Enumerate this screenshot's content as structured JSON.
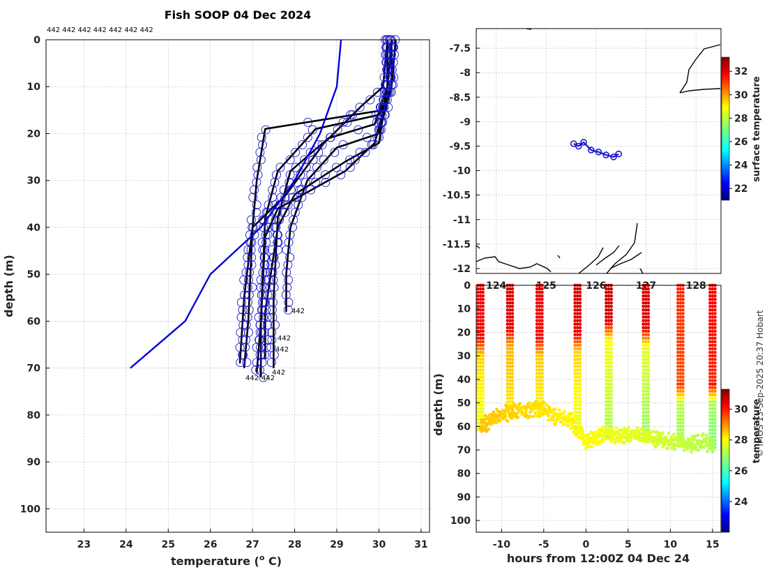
{
  "title": "Fish SOOP 04 Dec 2024",
  "copyright": "© IMOS 13-Sep-2025 20:37 Hobart",
  "colors": {
    "profile": "#000000",
    "climatology": "#0000dd",
    "markers": "#1515cc",
    "coast": "#000000"
  },
  "chart_data": [
    {
      "name": "profiles",
      "type": "line",
      "xlabel": "temperature (",
      "xlabel_unit": "o",
      "xlabel_tail": " C)",
      "ylabel": "depth (m)",
      "xlim": [
        22.1,
        31.2
      ],
      "ylim": [
        105,
        0
      ],
      "xticks": [
        "23",
        "24",
        "25",
        "26",
        "27",
        "28",
        "29",
        "30",
        "31"
      ],
      "yticks": [
        "0",
        "10",
        "20",
        "30",
        "40",
        "50",
        "60",
        "70",
        "80",
        "90",
        "100"
      ],
      "top_label": "442 442 442 442 442 442 442",
      "point_labels": [
        "442",
        "442",
        "442",
        "442",
        "442",
        "442"
      ],
      "climatology": {
        "x": [
          29.1,
          29.0,
          28.6,
          28.0,
          27.2,
          26.0,
          25.4,
          24.1
        ],
        "y": [
          0,
          10,
          20,
          30,
          40,
          50,
          60,
          70
        ]
      },
      "profiles": [
        {
          "x": [
            30.2,
            30.2,
            30.1,
            27.3,
            27.1,
            27.0,
            26.9,
            26.8
          ],
          "y": [
            0,
            10,
            15,
            19,
            30,
            40,
            60,
            70
          ]
        },
        {
          "x": [
            30.3,
            30.3,
            30.0,
            28.5,
            27.6,
            27.3,
            27.2,
            27.2
          ],
          "y": [
            0,
            10,
            16,
            19,
            28,
            38,
            60,
            72
          ]
        },
        {
          "x": [
            30.3,
            30.2,
            29.9,
            28.8,
            27.9,
            27.6,
            27.5,
            27.5
          ],
          "y": [
            0,
            10,
            18,
            21,
            28,
            38,
            55,
            70
          ]
        },
        {
          "x": [
            30.4,
            30.3,
            30.0,
            29.0,
            28.3,
            27.9,
            27.8,
            27.8
          ],
          "y": [
            0,
            10,
            20,
            23,
            30,
            40,
            50,
            58
          ]
        },
        {
          "x": [
            30.2,
            30.1,
            29.6,
            28.7,
            27.8,
            27.0,
            26.8,
            26.7
          ],
          "y": [
            0,
            10,
            14,
            22,
            33,
            40,
            55,
            69
          ]
        },
        {
          "x": [
            30.3,
            30.2,
            30.0,
            29.2,
            28.0,
            27.6,
            27.3,
            27.3
          ],
          "y": [
            0,
            10,
            22,
            26,
            33,
            40,
            58,
            68
          ]
        },
        {
          "x": [
            30.2,
            30.2,
            29.9,
            29.2,
            27.6,
            27.3,
            27.2,
            27.1
          ],
          "y": [
            0,
            12,
            22,
            28,
            36,
            42,
            60,
            71
          ]
        }
      ]
    },
    {
      "name": "map",
      "type": "scatter",
      "xlim": [
        123.6,
        128.5
      ],
      "ylim": [
        -12.1,
        -7.1
      ],
      "xticks": [
        "124",
        "125",
        "126",
        "127",
        "128"
      ],
      "yticks": [
        "-7.5",
        "-8",
        "-8.5",
        "-9",
        "-9.5",
        "-10",
        "-10.5",
        "-11",
        "-11.5",
        "-12"
      ],
      "track": {
        "lon": [
          125.55,
          125.65,
          125.75,
          125.9,
          126.05,
          126.2,
          126.35,
          126.45
        ],
        "lat": [
          -9.45,
          -9.5,
          -9.42,
          -9.58,
          -9.62,
          -9.68,
          -9.72,
          -9.66
        ]
      }
    },
    {
      "name": "section",
      "type": "scatter",
      "xlabel": "hours from 12:00Z 04 Dec 24",
      "ylabel": "depth (m)",
      "xlim": [
        -13,
        16
      ],
      "ylim": [
        105,
        0
      ],
      "xticks": [
        "-10",
        "-5",
        "0",
        "5",
        "10",
        "15"
      ],
      "yticks": [
        "0",
        "10",
        "20",
        "30",
        "40",
        "50",
        "60",
        "70",
        "80",
        "90",
        "100"
      ],
      "casts": [
        {
          "t": -12.5,
          "bottom": 62,
          "mix": 22,
          "sst": 30.3,
          "deep": 28.2
        },
        {
          "t": -9.0,
          "bottom": 55,
          "mix": 18,
          "sst": 30.5,
          "deep": 28.5
        },
        {
          "t": -5.5,
          "bottom": 55,
          "mix": 22,
          "sst": 30.3,
          "deep": 28.3
        },
        {
          "t": -1.0,
          "bottom": 63,
          "mix": 20,
          "sst": 30.5,
          "deep": 28.2
        },
        {
          "t": 2.7,
          "bottom": 65,
          "mix": 15,
          "sst": 30.6,
          "deep": 27.8
        },
        {
          "t": 7.1,
          "bottom": 66,
          "mix": 18,
          "sst": 30.5,
          "deep": 27.6
        },
        {
          "t": 11.2,
          "bottom": 68,
          "mix": 42,
          "sst": 29.8,
          "deep": 27.2
        },
        {
          "t": 15.0,
          "bottom": 70,
          "mix": 42,
          "sst": 30.2,
          "deep": 27.0
        }
      ],
      "bottom_trace": {
        "t": [
          -12.5,
          -11,
          -9.5,
          -8,
          -6,
          -5,
          -4,
          -2,
          -1,
          0,
          1,
          2.5,
          4,
          6,
          7,
          8,
          10,
          11,
          12.5,
          14,
          15
        ],
        "depth": [
          62,
          58,
          56,
          55,
          54,
          54,
          57,
          58,
          63,
          68,
          67,
          64,
          66,
          65,
          66,
          67,
          68,
          68,
          69,
          68,
          70
        ]
      }
    }
  ],
  "colorbars": [
    {
      "name": "surface-temperature",
      "label": "surface temperature",
      "range": [
        21,
        33.2
      ],
      "ticks": [
        "22",
        "24",
        "26",
        "28",
        "30",
        "32"
      ]
    },
    {
      "name": "temperature",
      "label": "temperature",
      "range": [
        22,
        31.3
      ],
      "ticks": [
        "24",
        "26",
        "28",
        "30"
      ]
    }
  ]
}
